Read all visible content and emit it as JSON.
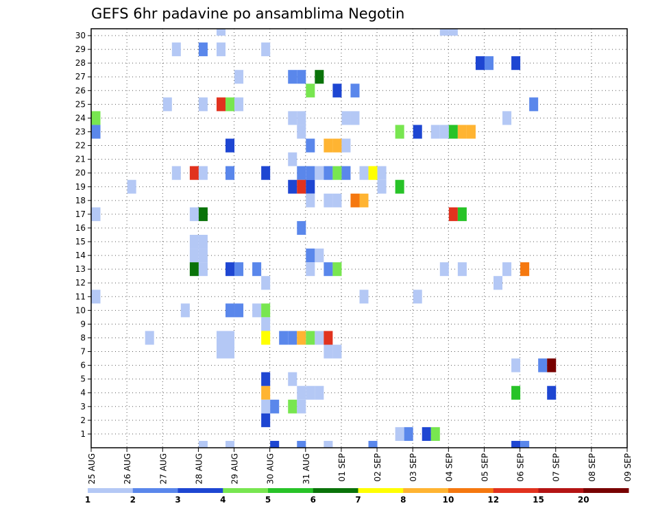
{
  "chart_data": {
    "type": "heatmap",
    "title": "GEFS 6hr padavine po ansamblima Negotin",
    "xlabel": "",
    "ylabel": "",
    "x_ticks": [
      "25 AUG",
      "26 AUG",
      "27 AUG",
      "28 AUG",
      "29 AUG",
      "30 AUG",
      "31 AUG",
      "01 SEP",
      "02 SEP",
      "03 SEP",
      "04 SEP",
      "05 SEP",
      "06 SEP",
      "07 SEP",
      "08 SEP",
      "09 SEP"
    ],
    "y_ticks": [
      "1",
      "2",
      "3",
      "4",
      "5",
      "6",
      "7",
      "8",
      "9",
      "10",
      "11",
      "12",
      "13",
      "14",
      "15",
      "16",
      "17",
      "18",
      "19",
      "20",
      "21",
      "22",
      "23",
      "24",
      "25",
      "26",
      "27",
      "28",
      "29",
      "30"
    ],
    "xlim_days": [
      0,
      15
    ],
    "ylim": [
      0,
      30
    ],
    "grid": true,
    "colorbar": {
      "levels": [
        "1",
        "2",
        "3",
        "4",
        "5",
        "6",
        "7",
        "8",
        "10",
        "12",
        "15",
        "20"
      ],
      "colors": [
        "#b4c8f5",
        "#5a87eb",
        "#1e46d2",
        "#78e650",
        "#28c328",
        "#0a730a",
        "#ffff00",
        "#ffb432",
        "#f5780f",
        "#e1321e",
        "#b41414",
        "#780000"
      ]
    },
    "cells_note_units": "x = forecast step index (6h steps from 25 AUG 00Z), y = ensemble member, c = colorbar class index",
    "cells": [
      {
        "x": 0,
        "y": 11,
        "c": 0
      },
      {
        "x": 0,
        "y": 17,
        "c": 0
      },
      {
        "x": 0,
        "y": 24,
        "c": 3
      },
      {
        "x": 0,
        "y": 23,
        "c": 1
      },
      {
        "x": 4,
        "y": 19,
        "c": 0
      },
      {
        "x": 6,
        "y": 8,
        "c": 0
      },
      {
        "x": 8,
        "y": 25,
        "c": 0
      },
      {
        "x": 9,
        "y": 29,
        "c": 0
      },
      {
        "x": 9,
        "y": 20,
        "c": 0
      },
      {
        "x": 10,
        "y": 10,
        "c": 0
      },
      {
        "x": 11,
        "y": 20,
        "c": 9
      },
      {
        "x": 11,
        "y": 17,
        "c": 0
      },
      {
        "x": 11,
        "y": 15,
        "c": 0
      },
      {
        "x": 11,
        "y": 14,
        "c": 0
      },
      {
        "x": 11,
        "y": 13,
        "c": 5
      },
      {
        "x": 12,
        "y": 29,
        "c": 1
      },
      {
        "x": 12,
        "y": 25,
        "c": 0
      },
      {
        "x": 12,
        "y": 20,
        "c": 0
      },
      {
        "x": 12,
        "y": 17,
        "c": 5
      },
      {
        "x": 12,
        "y": 15,
        "c": 0
      },
      {
        "x": 12,
        "y": 14,
        "c": 0
      },
      {
        "x": 12,
        "y": 13,
        "c": 0
      },
      {
        "x": 12,
        "y": 0,
        "c": 0
      },
      {
        "x": 14,
        "y": 30,
        "c": 0
      },
      {
        "x": 14,
        "y": 29,
        "c": 0
      },
      {
        "x": 14,
        "y": 25,
        "c": 9
      },
      {
        "x": 14,
        "y": 8,
        "c": 0
      },
      {
        "x": 14,
        "y": 7,
        "c": 0
      },
      {
        "x": 15,
        "y": 25,
        "c": 3
      },
      {
        "x": 15,
        "y": 22,
        "c": 2
      },
      {
        "x": 15,
        "y": 20,
        "c": 1
      },
      {
        "x": 15,
        "y": 13,
        "c": 2
      },
      {
        "x": 15,
        "y": 10,
        "c": 1
      },
      {
        "x": 15,
        "y": 8,
        "c": 0
      },
      {
        "x": 15,
        "y": 7,
        "c": 0
      },
      {
        "x": 15,
        "y": 0,
        "c": 0
      },
      {
        "x": 16,
        "y": 27,
        "c": 0
      },
      {
        "x": 16,
        "y": 25,
        "c": 0
      },
      {
        "x": 16,
        "y": 13,
        "c": 1
      },
      {
        "x": 16,
        "y": 10,
        "c": 1
      },
      {
        "x": 18,
        "y": 13,
        "c": 1
      },
      {
        "x": 18,
        "y": 10,
        "c": 0
      },
      {
        "x": 19,
        "y": 29,
        "c": 0
      },
      {
        "x": 19,
        "y": 20,
        "c": 2
      },
      {
        "x": 19,
        "y": 12,
        "c": 0
      },
      {
        "x": 19,
        "y": 10,
        "c": 3
      },
      {
        "x": 19,
        "y": 9,
        "c": 0
      },
      {
        "x": 19,
        "y": 8,
        "c": 6
      },
      {
        "x": 19,
        "y": 4,
        "c": 7
      },
      {
        "x": 19,
        "y": 5,
        "c": 2
      },
      {
        "x": 19,
        "y": 3,
        "c": 0
      },
      {
        "x": 19,
        "y": 2,
        "c": 2
      },
      {
        "x": 20,
        "y": 3,
        "c": 1
      },
      {
        "x": 20,
        "y": 0,
        "c": 2
      },
      {
        "x": 21,
        "y": 8,
        "c": 1
      },
      {
        "x": 22,
        "y": 27,
        "c": 1
      },
      {
        "x": 22,
        "y": 24,
        "c": 0
      },
      {
        "x": 22,
        "y": 21,
        "c": 0
      },
      {
        "x": 22,
        "y": 19,
        "c": 2
      },
      {
        "x": 22,
        "y": 8,
        "c": 1
      },
      {
        "x": 22,
        "y": 5,
        "c": 0
      },
      {
        "x": 22,
        "y": 3,
        "c": 3
      },
      {
        "x": 23,
        "y": 27,
        "c": 1
      },
      {
        "x": 23,
        "y": 24,
        "c": 0
      },
      {
        "x": 23,
        "y": 23,
        "c": 0
      },
      {
        "x": 23,
        "y": 20,
        "c": 1
      },
      {
        "x": 23,
        "y": 19,
        "c": 9
      },
      {
        "x": 23,
        "y": 16,
        "c": 1
      },
      {
        "x": 23,
        "y": 8,
        "c": 7
      },
      {
        "x": 23,
        "y": 4,
        "c": 0
      },
      {
        "x": 23,
        "y": 3,
        "c": 0
      },
      {
        "x": 23,
        "y": 0,
        "c": 1
      },
      {
        "x": 24,
        "y": 26,
        "c": 3
      },
      {
        "x": 24,
        "y": 22,
        "c": 1
      },
      {
        "x": 24,
        "y": 20,
        "c": 1
      },
      {
        "x": 24,
        "y": 19,
        "c": 2
      },
      {
        "x": 24,
        "y": 18,
        "c": 0
      },
      {
        "x": 24,
        "y": 14,
        "c": 1
      },
      {
        "x": 24,
        "y": 13,
        "c": 0
      },
      {
        "x": 24,
        "y": 8,
        "c": 3
      },
      {
        "x": 24,
        "y": 4,
        "c": 0
      },
      {
        "x": 25,
        "y": 27,
        "c": 5
      },
      {
        "x": 25,
        "y": 20,
        "c": 0
      },
      {
        "x": 25,
        "y": 14,
        "c": 0
      },
      {
        "x": 25,
        "y": 8,
        "c": 0
      },
      {
        "x": 25,
        "y": 4,
        "c": 0
      },
      {
        "x": 26,
        "y": 22,
        "c": 7
      },
      {
        "x": 26,
        "y": 20,
        "c": 1
      },
      {
        "x": 26,
        "y": 18,
        "c": 0
      },
      {
        "x": 26,
        "y": 13,
        "c": 1
      },
      {
        "x": 26,
        "y": 8,
        "c": 9
      },
      {
        "x": 26,
        "y": 7,
        "c": 0
      },
      {
        "x": 26,
        "y": 0,
        "c": 0
      },
      {
        "x": 27,
        "y": 26,
        "c": 2
      },
      {
        "x": 27,
        "y": 22,
        "c": 7
      },
      {
        "x": 27,
        "y": 20,
        "c": 3
      },
      {
        "x": 27,
        "y": 18,
        "c": 0
      },
      {
        "x": 27,
        "y": 13,
        "c": 3
      },
      {
        "x": 27,
        "y": 7,
        "c": 0
      },
      {
        "x": 28,
        "y": 24,
        "c": 0
      },
      {
        "x": 28,
        "y": 22,
        "c": 0
      },
      {
        "x": 28,
        "y": 20,
        "c": 1
      },
      {
        "x": 29,
        "y": 26,
        "c": 1
      },
      {
        "x": 29,
        "y": 24,
        "c": 0
      },
      {
        "x": 29,
        "y": 18,
        "c": 8
      },
      {
        "x": 30,
        "y": 20,
        "c": 0
      },
      {
        "x": 30,
        "y": 18,
        "c": 7
      },
      {
        "x": 30,
        "y": 11,
        "c": 0
      },
      {
        "x": 31,
        "y": 20,
        "c": 6
      },
      {
        "x": 31,
        "y": 0,
        "c": 1
      },
      {
        "x": 32,
        "y": 20,
        "c": 0
      },
      {
        "x": 32,
        "y": 19,
        "c": 0
      },
      {
        "x": 34,
        "y": 23,
        "c": 3
      },
      {
        "x": 34,
        "y": 19,
        "c": 4
      },
      {
        "x": 34,
        "y": 1,
        "c": 0
      },
      {
        "x": 35,
        "y": 1,
        "c": 1
      },
      {
        "x": 36,
        "y": 23,
        "c": 2
      },
      {
        "x": 36,
        "y": 11,
        "c": 0
      },
      {
        "x": 37,
        "y": 1,
        "c": 2
      },
      {
        "x": 38,
        "y": 23,
        "c": 0
      },
      {
        "x": 38,
        "y": 1,
        "c": 3
      },
      {
        "x": 39,
        "y": 30,
        "c": 0
      },
      {
        "x": 39,
        "y": 23,
        "c": 0
      },
      {
        "x": 39,
        "y": 13,
        "c": 0
      },
      {
        "x": 40,
        "y": 30,
        "c": 0
      },
      {
        "x": 40,
        "y": 23,
        "c": 4
      },
      {
        "x": 40,
        "y": 17,
        "c": 9
      },
      {
        "x": 41,
        "y": 23,
        "c": 7
      },
      {
        "x": 41,
        "y": 17,
        "c": 4
      },
      {
        "x": 41,
        "y": 13,
        "c": 0
      },
      {
        "x": 42,
        "y": 23,
        "c": 7
      },
      {
        "x": 43,
        "y": 28,
        "c": 2
      },
      {
        "x": 44,
        "y": 28,
        "c": 1
      },
      {
        "x": 45,
        "y": 12,
        "c": 0
      },
      {
        "x": 46,
        "y": 24,
        "c": 0
      },
      {
        "x": 46,
        "y": 13,
        "c": 0
      },
      {
        "x": 47,
        "y": 28,
        "c": 2
      },
      {
        "x": 47,
        "y": 6,
        "c": 0
      },
      {
        "x": 47,
        "y": 4,
        "c": 4
      },
      {
        "x": 47,
        "y": 0,
        "c": 2
      },
      {
        "x": 48,
        "y": 13,
        "c": 8
      },
      {
        "x": 48,
        "y": 0,
        "c": 1
      },
      {
        "x": 49,
        "y": 25,
        "c": 1
      },
      {
        "x": 50,
        "y": 6,
        "c": 1
      },
      {
        "x": 51,
        "y": 6,
        "c": 11
      },
      {
        "x": 51,
        "y": 4,
        "c": 2
      }
    ]
  }
}
